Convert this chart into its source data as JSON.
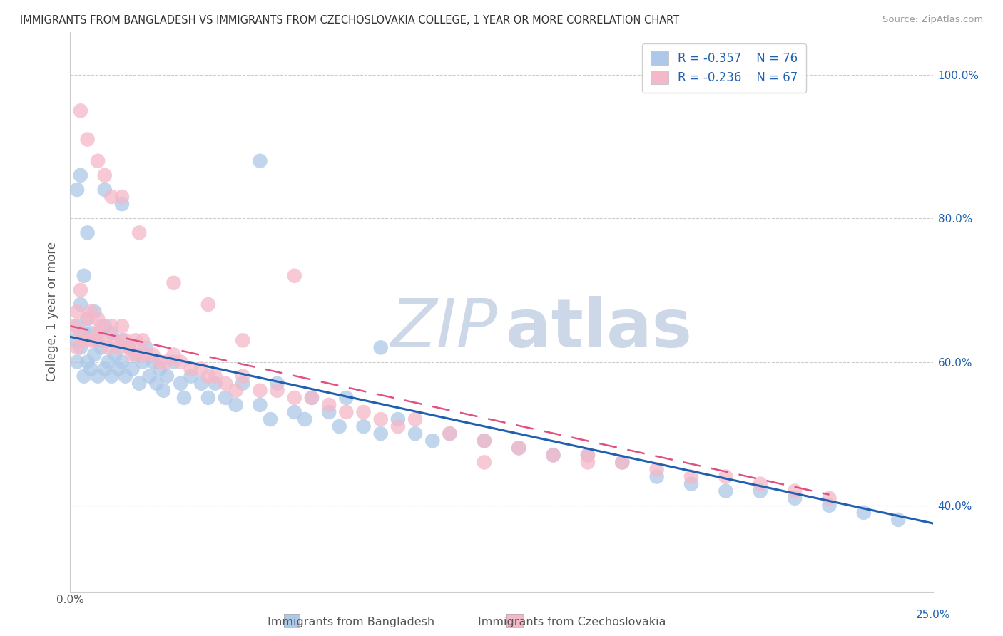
{
  "title": "IMMIGRANTS FROM BANGLADESH VS IMMIGRANTS FROM CZECHOSLOVAKIA COLLEGE, 1 YEAR OR MORE CORRELATION CHART",
  "source": "Source: ZipAtlas.com",
  "ylabel_label": "College, 1 year or more",
  "x_label_bottom_blue": "Immigrants from Bangladesh",
  "x_label_bottom_pink": "Immigrants from Czechoslovakia",
  "xlim": [
    0.0,
    0.25
  ],
  "ylim": [
    0.28,
    1.06
  ],
  "right_y_ticks": [
    0.4,
    0.6,
    0.8,
    1.0
  ],
  "right_y_tick_labels": [
    "40.0%",
    "60.0%",
    "80.0%",
    "100.0%"
  ],
  "x_ticks": [
    0.0,
    0.05,
    0.1,
    0.15,
    0.2,
    0.25
  ],
  "x_tick_label_left": "0.0%",
  "x_tick_label_right": "25.0%",
  "legend_r_blue": "-0.357",
  "legend_n_blue": "76",
  "legend_r_pink": "-0.236",
  "legend_n_pink": "67",
  "blue_fill_color": "#adc8e8",
  "pink_fill_color": "#f5b8c8",
  "blue_line_color": "#2060b0",
  "pink_line_color": "#e05080",
  "grid_color": "#cccccc",
  "watermark_zip_color": "#ccd8e8",
  "watermark_atlas_color": "#ccd8e8",
  "title_color": "#333333",
  "source_color": "#999999",
  "ylabel_color": "#555555",
  "right_tick_color": "#2060b0",
  "bottom_tick_color": "#2060b0",
  "background_color": "#ffffff",
  "blue_x": [
    0.001,
    0.002,
    0.002,
    0.003,
    0.003,
    0.004,
    0.004,
    0.005,
    0.005,
    0.006,
    0.006,
    0.007,
    0.007,
    0.008,
    0.008,
    0.009,
    0.01,
    0.01,
    0.011,
    0.012,
    0.012,
    0.013,
    0.014,
    0.015,
    0.015,
    0.016,
    0.017,
    0.018,
    0.019,
    0.02,
    0.021,
    0.022,
    0.023,
    0.024,
    0.025,
    0.026,
    0.027,
    0.028,
    0.03,
    0.032,
    0.033,
    0.035,
    0.038,
    0.04,
    0.042,
    0.045,
    0.048,
    0.05,
    0.055,
    0.058,
    0.06,
    0.065,
    0.068,
    0.07,
    0.075,
    0.078,
    0.08,
    0.085,
    0.09,
    0.095,
    0.1,
    0.105,
    0.11,
    0.12,
    0.13,
    0.14,
    0.15,
    0.16,
    0.17,
    0.18,
    0.19,
    0.2,
    0.21,
    0.22,
    0.23,
    0.24
  ],
  "blue_y": [
    0.63,
    0.6,
    0.65,
    0.62,
    0.68,
    0.58,
    0.64,
    0.6,
    0.66,
    0.59,
    0.64,
    0.61,
    0.67,
    0.58,
    0.63,
    0.62,
    0.59,
    0.65,
    0.6,
    0.58,
    0.64,
    0.61,
    0.59,
    0.63,
    0.6,
    0.58,
    0.62,
    0.59,
    0.61,
    0.57,
    0.6,
    0.62,
    0.58,
    0.6,
    0.57,
    0.59,
    0.56,
    0.58,
    0.6,
    0.57,
    0.55,
    0.58,
    0.57,
    0.55,
    0.57,
    0.55,
    0.54,
    0.57,
    0.54,
    0.52,
    0.57,
    0.53,
    0.52,
    0.55,
    0.53,
    0.51,
    0.55,
    0.51,
    0.5,
    0.52,
    0.5,
    0.49,
    0.5,
    0.49,
    0.48,
    0.47,
    0.47,
    0.46,
    0.44,
    0.43,
    0.42,
    0.42,
    0.41,
    0.4,
    0.39,
    0.38
  ],
  "pink_x": [
    0.001,
    0.002,
    0.002,
    0.003,
    0.003,
    0.004,
    0.005,
    0.006,
    0.006,
    0.007,
    0.008,
    0.008,
    0.009,
    0.01,
    0.011,
    0.012,
    0.013,
    0.014,
    0.015,
    0.016,
    0.017,
    0.018,
    0.019,
    0.02,
    0.021,
    0.022,
    0.024,
    0.026,
    0.028,
    0.03,
    0.032,
    0.035,
    0.038,
    0.04,
    0.042,
    0.045,
    0.048,
    0.05,
    0.055,
    0.06,
    0.065,
    0.07,
    0.075,
    0.08,
    0.085,
    0.09,
    0.095,
    0.1,
    0.11,
    0.12,
    0.13,
    0.14,
    0.15,
    0.16,
    0.17,
    0.18,
    0.19,
    0.2,
    0.21,
    0.22,
    0.005,
    0.01,
    0.015,
    0.02,
    0.03,
    0.04,
    0.05
  ],
  "pink_y": [
    0.65,
    0.62,
    0.67,
    0.64,
    0.7,
    0.63,
    0.66,
    0.63,
    0.67,
    0.63,
    0.64,
    0.66,
    0.65,
    0.63,
    0.62,
    0.65,
    0.63,
    0.62,
    0.65,
    0.63,
    0.62,
    0.61,
    0.63,
    0.61,
    0.63,
    0.61,
    0.61,
    0.6,
    0.6,
    0.61,
    0.6,
    0.59,
    0.59,
    0.58,
    0.58,
    0.57,
    0.56,
    0.58,
    0.56,
    0.56,
    0.55,
    0.55,
    0.54,
    0.53,
    0.53,
    0.52,
    0.51,
    0.52,
    0.5,
    0.49,
    0.48,
    0.47,
    0.47,
    0.46,
    0.45,
    0.44,
    0.44,
    0.43,
    0.42,
    0.41,
    0.91,
    0.86,
    0.83,
    0.78,
    0.71,
    0.68,
    0.63
  ],
  "blue_x_extra": [
    0.002,
    0.003,
    0.004,
    0.005,
    0.01,
    0.015,
    0.055,
    0.09
  ],
  "blue_y_extra": [
    0.84,
    0.86,
    0.72,
    0.78,
    0.84,
    0.82,
    0.88,
    0.62
  ],
  "pink_x_extra": [
    0.003,
    0.008,
    0.012,
    0.065,
    0.12,
    0.15
  ],
  "pink_y_extra": [
    0.95,
    0.88,
    0.83,
    0.72,
    0.46,
    0.46
  ]
}
